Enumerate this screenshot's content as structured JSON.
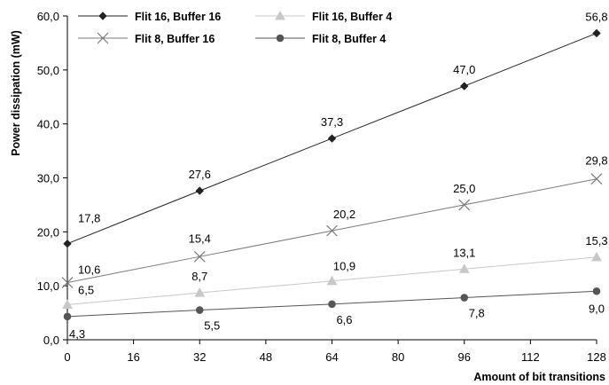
{
  "chart_data": {
    "type": "line",
    "title": "",
    "xlabel": "Amount of bit transitions",
    "ylabel": "Power dissipation (mW)",
    "x": [
      0,
      32,
      64,
      96,
      128
    ],
    "xticks": [
      "0",
      "16",
      "32",
      "48",
      "64",
      "80",
      "96",
      "112",
      "128"
    ],
    "xlim": [
      0,
      128
    ],
    "yticks": [
      "0,0",
      "10,0",
      "20,0",
      "30,0",
      "40,0",
      "50,0",
      "60,0"
    ],
    "ylim": [
      0,
      60
    ],
    "grid": false,
    "legend_position": "top-left",
    "series": [
      {
        "name": "Flit 16, Buffer 16",
        "marker": "diamond",
        "color": "#222222",
        "values": [
          17.8,
          27.6,
          37.3,
          47.0,
          56.8
        ],
        "labels": [
          "17,8",
          "27,6",
          "37,3",
          "47,0",
          "56,8"
        ]
      },
      {
        "name": "Flit 16, Buffer 4",
        "marker": "triangle",
        "color": "#c8c8c8",
        "values": [
          6.5,
          8.7,
          10.9,
          13.1,
          15.3
        ],
        "labels": [
          "6,5",
          "8,7",
          "10,9",
          "13,1",
          "15,3"
        ]
      },
      {
        "name": "Flit 8, Buffer 16",
        "marker": "x",
        "color": "#7a7a7a",
        "values": [
          10.6,
          15.4,
          20.2,
          25.0,
          29.8
        ],
        "labels": [
          "10,6",
          "15,4",
          "20,2",
          "25,0",
          "29,8"
        ]
      },
      {
        "name": "Flit 8, Buffer 4",
        "marker": "circle",
        "color": "#555555",
        "values": [
          4.3,
          5.5,
          6.6,
          7.8,
          9.0
        ],
        "labels": [
          "4,3",
          "5,5",
          "6,6",
          "7,8",
          "9,0"
        ]
      }
    ]
  }
}
